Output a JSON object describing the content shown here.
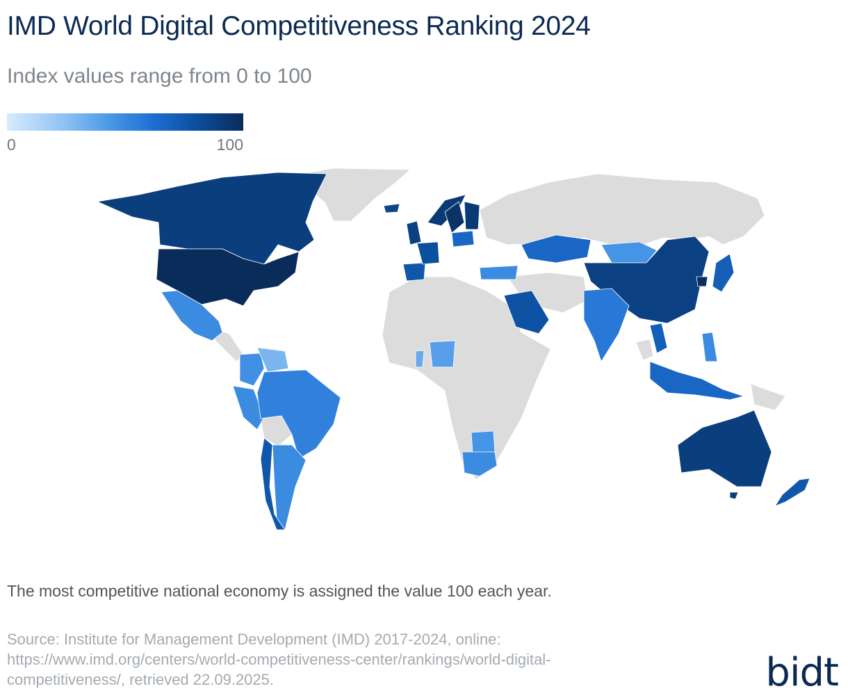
{
  "header": {
    "title": "IMD World Digital Competitiveness Ranking 2024",
    "subtitle": "Index values range from 0 to 100"
  },
  "legend": {
    "min_label": "0",
    "max_label": "100",
    "gradient_colors": [
      "#d7ebfc",
      "#8dc0f2",
      "#4594e6",
      "#1d6ed2",
      "#0b4f9e",
      "#0a2c5a"
    ],
    "no_data_color": "#dcdcdc"
  },
  "map": {
    "type": "choropleth",
    "regions": [
      {
        "name": "Canada",
        "value": 90
      },
      {
        "name": "United States",
        "value": 100
      },
      {
        "name": "Greenland",
        "value": null
      },
      {
        "name": "Mexico",
        "value": 45
      },
      {
        "name": "Guatemala",
        "value": null
      },
      {
        "name": "Colombia",
        "value": 42
      },
      {
        "name": "Venezuela",
        "value": 25
      },
      {
        "name": "Peru",
        "value": 45
      },
      {
        "name": "Brazil",
        "value": 50
      },
      {
        "name": "Bolivia",
        "value": null
      },
      {
        "name": "Chile",
        "value": 75
      },
      {
        "name": "Argentina",
        "value": 45
      },
      {
        "name": "Iceland",
        "value": 85
      },
      {
        "name": "United Kingdom",
        "value": 88
      },
      {
        "name": "Spain",
        "value": 75
      },
      {
        "name": "France",
        "value": 80
      },
      {
        "name": "Norway",
        "value": 92
      },
      {
        "name": "Sweden",
        "value": 96
      },
      {
        "name": "Finland",
        "value": 92
      },
      {
        "name": "Poland",
        "value": 65
      },
      {
        "name": "Turkey",
        "value": 45
      },
      {
        "name": "Russia",
        "value": null
      },
      {
        "name": "Kazakhstan",
        "value": 65
      },
      {
        "name": "Mongolia",
        "value": 40
      },
      {
        "name": "China",
        "value": 88
      },
      {
        "name": "South Korea",
        "value": 98
      },
      {
        "name": "Japan",
        "value": 70
      },
      {
        "name": "Saudi Arabia",
        "value": 78
      },
      {
        "name": "India",
        "value": 55
      },
      {
        "name": "Thailand",
        "value": 70
      },
      {
        "name": "Indonesia",
        "value": 65
      },
      {
        "name": "Philippines",
        "value": 45
      },
      {
        "name": "Nigeria",
        "value": 35
      },
      {
        "name": "Ghana",
        "value": 30
      },
      {
        "name": "Botswana",
        "value": 40
      },
      {
        "name": "South Africa",
        "value": 45
      },
      {
        "name": "Australia",
        "value": 90
      },
      {
        "name": "New Zealand",
        "value": 75
      }
    ]
  },
  "note": "The most competitive national economy is assigned the value 100 each year.",
  "source": {
    "line1": "Source: Institute for Management Development (IMD) 2017-2024, online:",
    "line2": "https://www.imd.org/centers/world-competitiveness-center/rankings/world-digital-",
    "line3": "competitiveness/, retrieved 22.09.2025."
  },
  "logo": "bidt"
}
